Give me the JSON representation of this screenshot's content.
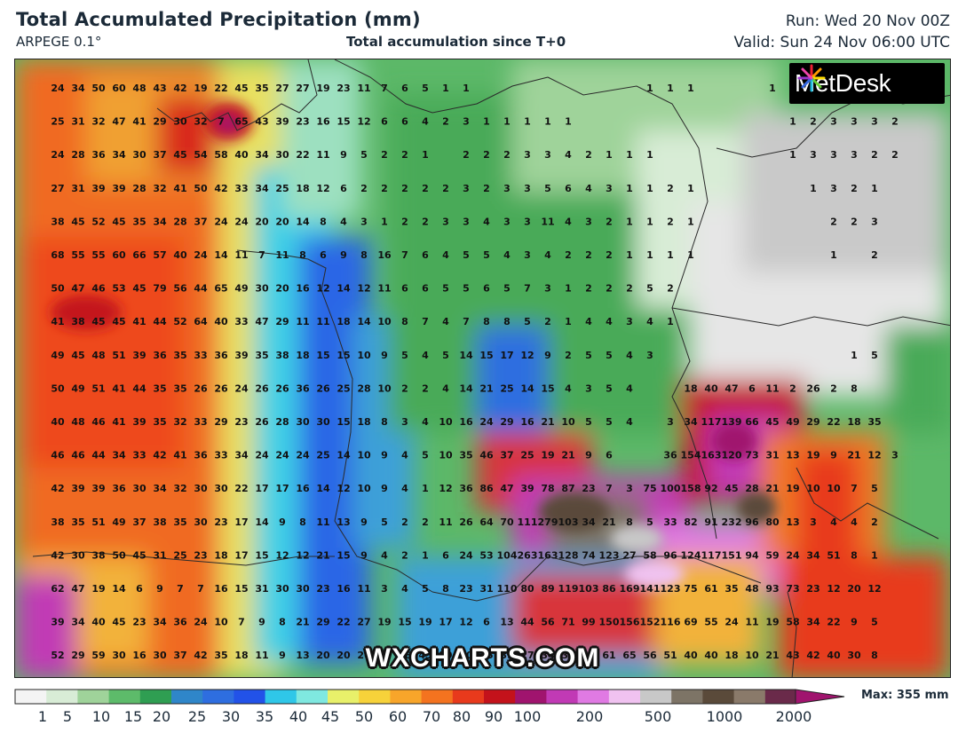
{
  "header": {
    "title": "Total Accumulated Precipitation (mm)",
    "model": "ARPEGE 0.1°",
    "subtitle": "Total accumulation since T+0",
    "run": "Run: Wed 20 Nov 00Z",
    "valid": "Valid: Sun 24 Nov 06:00 UTC"
  },
  "logo": {
    "text": "MetDesk"
  },
  "watermark": "WXCHARTS.COM",
  "legend": {
    "max_label": "Max: 355 mm",
    "ticks": [
      "1",
      "5",
      "10",
      "15",
      "20",
      "25",
      "30",
      "35",
      "40",
      "45",
      "50",
      "60",
      "70",
      "80",
      "90",
      "100",
      "200",
      "500",
      "1000",
      "2000"
    ],
    "colors": [
      "#f4f4f4",
      "#d8ecd6",
      "#9fd39a",
      "#5dbb6a",
      "#2f9e52",
      "#2f86c9",
      "#2e6ee0",
      "#2252e8",
      "#2fc7e8",
      "#7fe8e0",
      "#e8f06a",
      "#f7d23a",
      "#f8a52a",
      "#f4731f",
      "#e83a1c",
      "#c4121b",
      "#a0146e",
      "#c13ab5",
      "#e07ae3",
      "#f0c2f0",
      "#c8c8c8",
      "#7d7466",
      "#5a4a3a",
      "#8a7a6a",
      "#6a2a4a"
    ],
    "icons": [
      "metdesk-logo-icon"
    ]
  },
  "grid": {
    "rows": [
      "24 34 50 60 48 43 42 19 22 45 35 27 27 19 23 11 7 6 5 1 1 - - - - - - - - 1 1 1 - - - 1",
      "25 31 32 47 41 29 30 32 7 65 43 39 23 16 15 12 6 6 4 2 3 1 1 1 1 1 - - - - - - - - - - 1 2 3 3 3 2",
      "24 28 36 34 30 37 45 54 58 40 34 30 22 11 9 5 2 2 1 - 2 2 2 3 3 4 2 1 1 1 - - - - - - 1 3 3 3 2 2",
      "27 31 39 39 28 32 41 50 42 33 34 25 18 12 6 2 2 2 2 2 3 2 3 3 5 6 4 3 1 1 2 1 - - - - - 1 3 2 1",
      "38 45 52 45 35 34 28 37 24 24 20 20 14 8 4 3 1 2 2 3 3 4 3 3 11 4 3 2 1 1 2 1 - - - - - - 2 2 3",
      "68 55 55 60 66 57 40 24 14 11 7 11 8 6 9 8 16 7 6 4 5 5 4 3 4 2 2 2 1 1 1 1 - - - - - - 1 - 2",
      "50 47 46 53 45 79 56 44 65 49 30 20 16 12 14 12 11 6 6 5 5 6 5 7 3 1 2 2 2 5 2",
      "41 38 45 45 41 44 52 64 40 33 47 29 11 11 18 14 10 8 7 4 7 8 8 5 2 1 4 4 3 4 1",
      "49 45 48 51 39 36 35 33 36 39 35 38 18 15 15 10 9 5 4 5 14 15 17 12 9 2 5 5 4 3 - - - - - - - - - 1 5",
      "50 49 51 41 44 35 35 26 26 24 26 26 36 26 25 28 10 2 2 4 14 21 25 14 15 4 3 5 4 - - 18 40 47 6 11 2 26 2 8",
      "40 48 46 41 39 35 32 33 29 23 26 28 30 30 15 18 8 3 4 10 16 24 29 16 21 10 5 5 4 - 3 34 117 139 66 45 49 29 22 18 35",
      "46 46 44 34 33 42 41 36 33 34 24 24 24 25 14 10 9 4 5 10 35 46 37 25 19 21 9 6 - - 36 154 163 120 73 31 13 19 9 21 12 3",
      "42 39 39 36 30 34 32 30 30 22 17 17 16 14 12 10 9 4 1 12 36 86 47 39 78 87 23 7 3 75 100 158 92 45 28 21 19 10 10 7 5",
      "38 35 51 49 37 38 35 30 23 17 14 9 8 11 13 9 5 2 2 11 26 64 70 111 279 103 34 21 8 5 33 82 91 232 96 80 13 3 4 4 2",
      "42 30 38 50 45 31 25 23 18 17 15 12 12 21 15 9 4 2 1 6 24 53 104 263 163 128 74 123 27 58 96 124 117 151 94 59 24 34 51 8 1",
      "62 47 19 14 6 9 7 7 16 15 31 30 30 23 16 11 3 4 5 8 23 31 110 80 89 119 103 86 169 141 123 75 61 35 48 93 73 23 12 20 12",
      "39 34 40 45 23 34 36 24 10 7 9 8 21 29 22 27 19 15 19 17 12 6 13 44 56 71 99 150 156 152 116 69 55 24 11 19 58 34 22 9 5",
      "52 29 59 30 16 30 37 42 35 18 11 9 13 20 20 26 43 38 45 29 20 25 39 27 34 39 57 61 65 56 51 40 40 18 10 21 43 42 40 30 8"
    ]
  }
}
